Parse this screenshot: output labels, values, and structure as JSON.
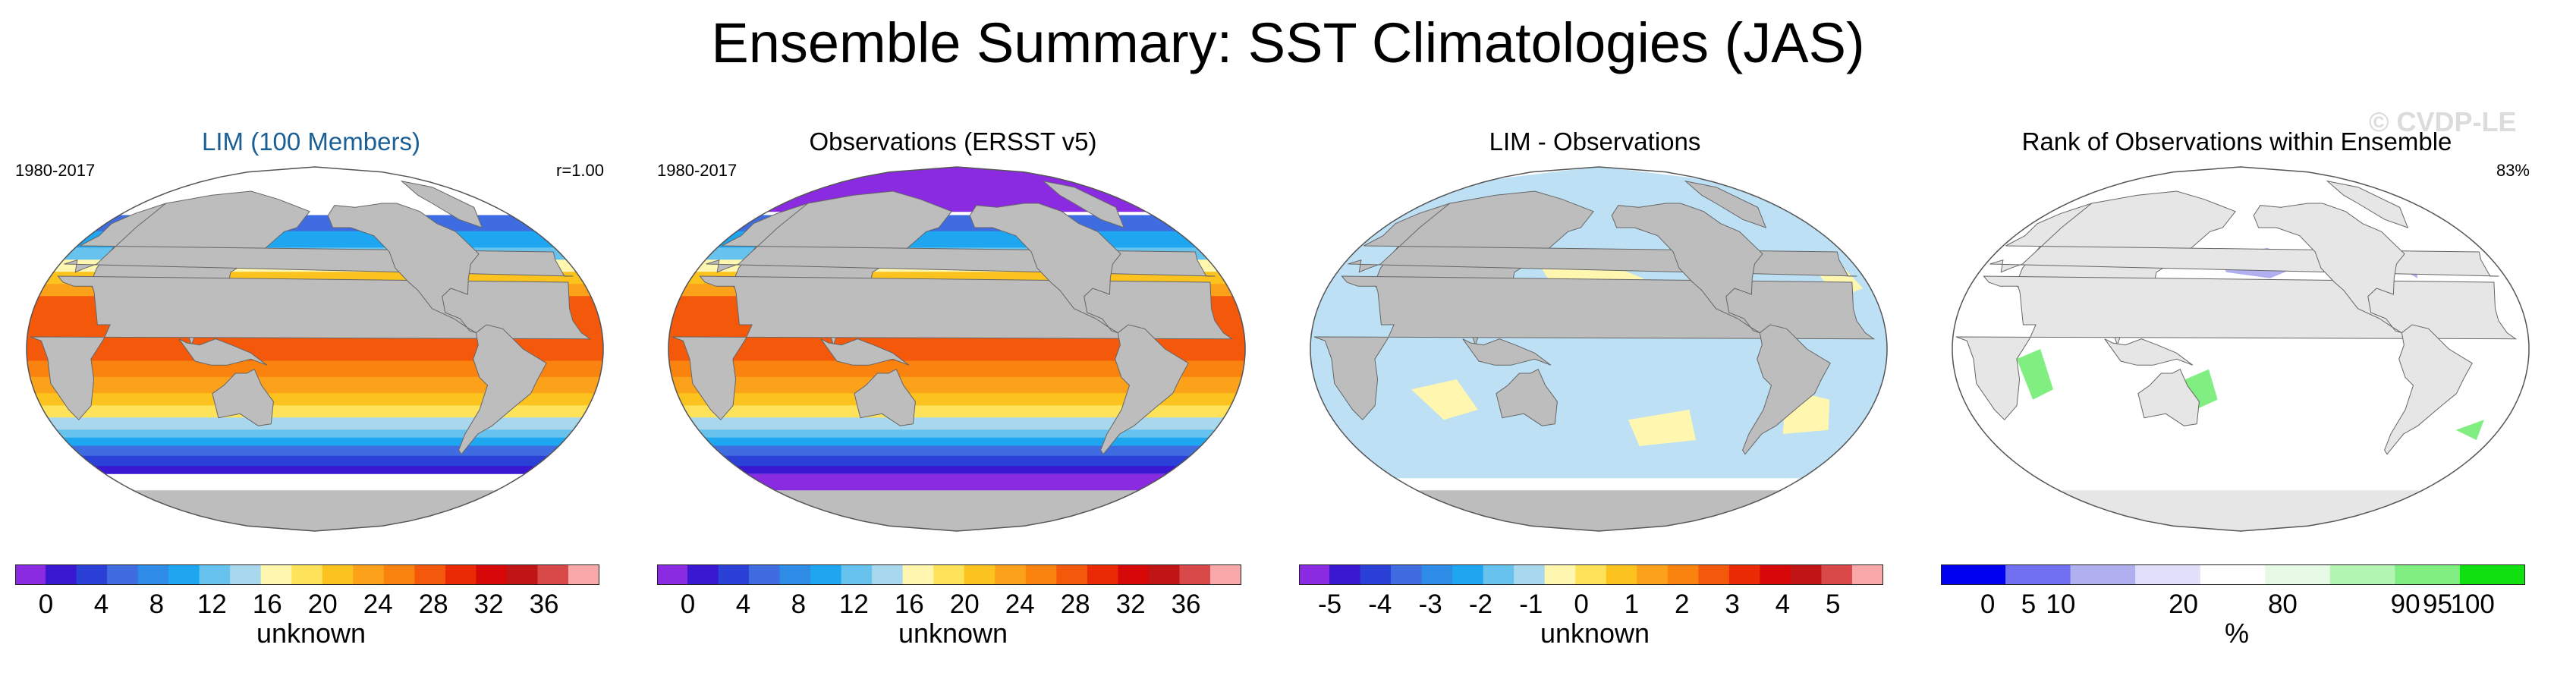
{
  "title": "Ensemble Summary: SST Climatologies (JAS)",
  "watermark": "© CVDP-LE",
  "panels": [
    {
      "title": "LIM (100 Members)",
      "left_label": "1980-2017",
      "right_label": "r=1.00",
      "colorbar": {
        "colors": [
          "#8a2be2",
          "#3a17d0",
          "#2a40d6",
          "#3f6ce0",
          "#2e8be6",
          "#1ea6f0",
          "#67c2ee",
          "#a9d8ee",
          "#fff7b0",
          "#fde25a",
          "#fcc21e",
          "#fba11a",
          "#f9830e",
          "#f4580a",
          "#ea2a04",
          "#d60808",
          "#c01515",
          "#d94848",
          "#f8a8a8"
        ],
        "ticks": [
          "0",
          "4",
          "8",
          "12",
          "16",
          "20",
          "24",
          "28",
          "32",
          "36"
        ],
        "unit": "unknown"
      }
    },
    {
      "title": "Observations (ERSST v5)",
      "left_label": "1980-2017",
      "right_label": "",
      "colorbar": {
        "colors": [
          "#8a2be2",
          "#3a17d0",
          "#2a40d6",
          "#3f6ce0",
          "#2e8be6",
          "#1ea6f0",
          "#67c2ee",
          "#a9d8ee",
          "#fff7b0",
          "#fde25a",
          "#fcc21e",
          "#fba11a",
          "#f9830e",
          "#f4580a",
          "#ea2a04",
          "#d60808",
          "#c01515",
          "#d94848",
          "#f8a8a8"
        ],
        "ticks": [
          "0",
          "4",
          "8",
          "12",
          "16",
          "20",
          "24",
          "28",
          "32",
          "36"
        ],
        "unit": "unknown"
      }
    },
    {
      "title": "LIM - Observations",
      "left_label": "",
      "right_label": "",
      "colorbar": {
        "colors": [
          "#8a2be2",
          "#3a17d0",
          "#2a40d6",
          "#3f6ce0",
          "#2e8be6",
          "#1ea6f0",
          "#67c2ee",
          "#a9d8ee",
          "#fff7b0",
          "#fde25a",
          "#fcc21e",
          "#fba11a",
          "#f9830e",
          "#f4580a",
          "#ea2a04",
          "#d60808",
          "#c01515",
          "#d94848",
          "#f8a8a8"
        ],
        "ticks": [
          "-5",
          "-4",
          "-3",
          "-2",
          "-1",
          "0",
          "1",
          "2",
          "3",
          "4",
          "5"
        ],
        "unit": "unknown"
      }
    },
    {
      "title": "Rank of Observations within Ensemble",
      "left_label": "",
      "right_label": "83%",
      "colorbar": {
        "colors": [
          "#0000f0",
          "#7070f0",
          "#b0b0f0",
          "#e0e0fa",
          "#ffffff",
          "#e6fae6",
          "#b3f5b3",
          "#80ee80",
          "#10e010"
        ],
        "ticks": [
          "0",
          "5",
          "10",
          "20",
          "80",
          "90",
          "95",
          "100"
        ],
        "tick_positions": [
          0.08,
          0.15,
          0.205,
          0.415,
          0.585,
          0.795,
          0.85,
          0.91
        ],
        "unit": "%"
      }
    }
  ]
}
